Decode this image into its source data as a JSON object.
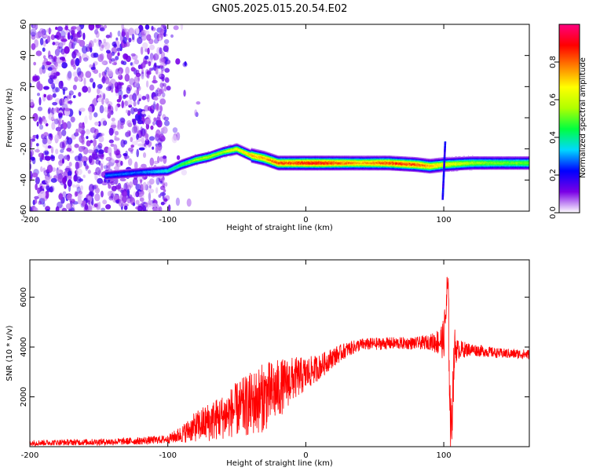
{
  "chart_data": [
    {
      "type": "heatmap",
      "title": "GN05.2025.015.20.54.E02",
      "xlabel": "Height of straight line (km)",
      "ylabel": "Frequency (Hz)",
      "xlim": [
        -200,
        162
      ],
      "ylim": [
        -60,
        60
      ],
      "xticks": [
        -200,
        -100,
        0,
        100
      ],
      "yticks": [
        -60,
        -40,
        -20,
        0,
        20,
        40,
        60
      ],
      "colorbar": {
        "label": "Normalized spectral amplitude",
        "range": [
          0,
          1
        ],
        "ticks": [
          "0.0",
          "0.2",
          "0.4",
          "0.6",
          "0.8"
        ],
        "colormap": [
          "#ffffff",
          "#7a00e6",
          "#0000ff",
          "#00d8ff",
          "#00ff40",
          "#b0ff00",
          "#ffff00",
          "#ff8000",
          "#ff0000",
          "#ff0080"
        ]
      },
      "noise_region_x": [
        -200,
        -100
      ],
      "ridge": {
        "x": [
          -145,
          -120,
          -100,
          -90,
          -80,
          -70,
          -60,
          -50,
          -40,
          -30,
          -20,
          -10,
          0,
          10,
          20,
          40,
          60,
          80,
          90,
          100,
          120,
          140,
          162
        ],
        "y": [
          -37,
          -35,
          -34,
          -30,
          -27,
          -25,
          -22,
          -20,
          -24,
          -26,
          -29,
          -29,
          -29,
          -29,
          -29,
          -29,
          -29,
          -30,
          -31,
          -30,
          -29,
          -29,
          -29
        ],
        "peak_amplitude": [
          0.3,
          0.3,
          0.4,
          0.5,
          0.6,
          0.6,
          0.6,
          0.7,
          0.8,
          0.8,
          0.9,
          0.9,
          0.95,
          0.95,
          0.9,
          0.8,
          0.9,
          0.9,
          0.8,
          0.7,
          0.6,
          0.55,
          0.55
        ]
      },
      "transient": {
        "x": 100,
        "y_range": [
          -52,
          -15
        ]
      }
    },
    {
      "type": "line",
      "xlabel": "Height of straight line (km)",
      "ylabel": "SNR (10 * v/v)",
      "xlim": [
        -200,
        162
      ],
      "ylim": [
        0,
        7500
      ],
      "xticks": [
        -200,
        -100,
        0,
        100
      ],
      "yticks": [
        2000,
        4000,
        6000
      ],
      "color": "#ff0000",
      "series": [
        {
          "x": [
            -200,
            -180,
            -160,
            -140,
            -120,
            -100,
            -90,
            -80,
            -70,
            -60,
            -50,
            -40,
            -30,
            -20,
            -10,
            0,
            10,
            20,
            30,
            40,
            60,
            80,
            90,
            95,
            100,
            103,
            105,
            108,
            110,
            120,
            140,
            162
          ],
          "values": [
            150,
            170,
            180,
            200,
            230,
            300,
            500,
            800,
            1000,
            1200,
            1500,
            1700,
            2000,
            2300,
            2700,
            2900,
            3200,
            3600,
            3900,
            4100,
            4150,
            4150,
            4200,
            4200,
            4300,
            6500,
            300,
            4000,
            3900,
            3900,
            3750,
            3700
          ],
          "noise_amplitude": [
            120,
            120,
            130,
            140,
            150,
            170,
            350,
            600,
            800,
            900,
            1100,
            1300,
            1400,
            1200,
            900,
            700,
            500,
            400,
            300,
            250,
            250,
            250,
            300,
            500,
            800,
            1200,
            1500,
            800,
            400,
            250,
            200,
            200
          ]
        }
      ]
    }
  ]
}
